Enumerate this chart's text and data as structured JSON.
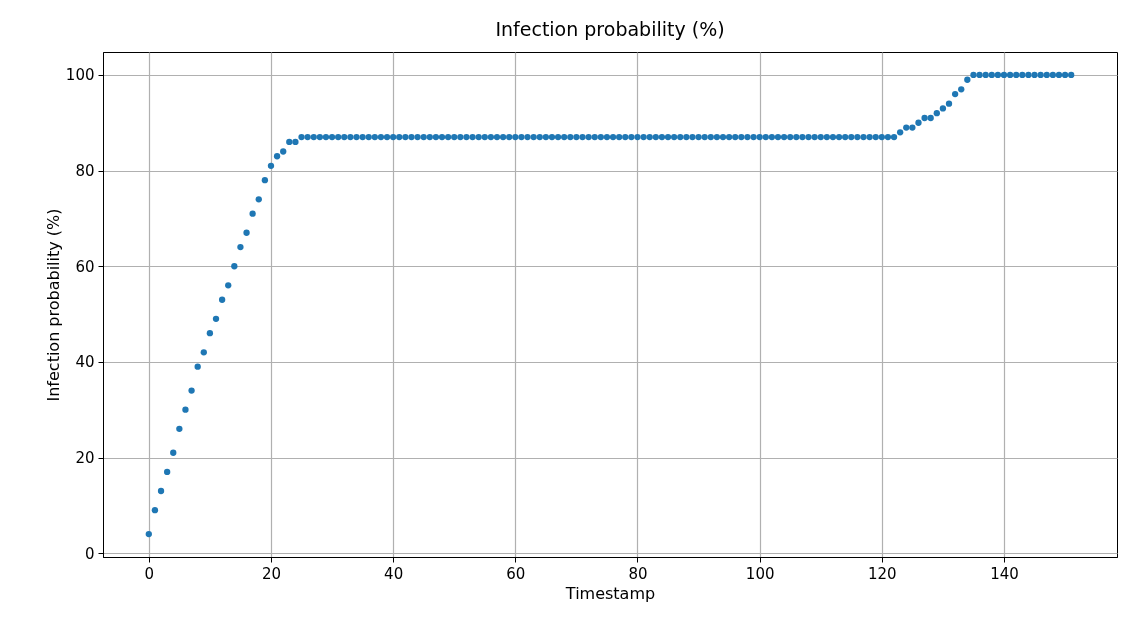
{
  "chart_data": {
    "type": "scatter",
    "title": "Infection probability (%)",
    "xlabel": "Timestamp",
    "ylabel": "Infection probability (%)",
    "x": [
      0,
      1,
      2,
      3,
      4,
      5,
      6,
      7,
      8,
      9,
      10,
      11,
      12,
      13,
      14,
      15,
      16,
      17,
      18,
      19,
      20,
      21,
      22,
      23,
      24,
      25,
      26,
      27,
      28,
      29,
      30,
      31,
      32,
      33,
      34,
      35,
      36,
      37,
      38,
      39,
      40,
      41,
      42,
      43,
      44,
      45,
      46,
      47,
      48,
      49,
      50,
      51,
      52,
      53,
      54,
      55,
      56,
      57,
      58,
      59,
      60,
      61,
      62,
      63,
      64,
      65,
      66,
      67,
      68,
      69,
      70,
      71,
      72,
      73,
      74,
      75,
      76,
      77,
      78,
      79,
      80,
      81,
      82,
      83,
      84,
      85,
      86,
      87,
      88,
      89,
      90,
      91,
      92,
      93,
      94,
      95,
      96,
      97,
      98,
      99,
      100,
      101,
      102,
      103,
      104,
      105,
      106,
      107,
      108,
      109,
      110,
      111,
      112,
      113,
      114,
      115,
      116,
      117,
      118,
      119,
      120,
      121,
      122,
      123,
      124,
      125,
      126,
      127,
      128,
      129,
      130,
      131,
      132,
      133,
      134,
      135,
      136,
      137,
      138,
      139,
      140,
      141,
      142,
      143,
      144,
      145,
      146,
      147,
      148,
      149,
      150,
      151
    ],
    "series": [
      {
        "color": "#1f77b4",
        "values": [
          4,
          9,
          13,
          17,
          21,
          26,
          30,
          34,
          39,
          42,
          46,
          49,
          53,
          56,
          60,
          64,
          67,
          71,
          74,
          78,
          81,
          83,
          84,
          86,
          86,
          87,
          87,
          87,
          87,
          87,
          87,
          87,
          87,
          87,
          87,
          87,
          87,
          87,
          87,
          87,
          87,
          87,
          87,
          87,
          87,
          87,
          87,
          87,
          87,
          87,
          87,
          87,
          87,
          87,
          87,
          87,
          87,
          87,
          87,
          87,
          87,
          87,
          87,
          87,
          87,
          87,
          87,
          87,
          87,
          87,
          87,
          87,
          87,
          87,
          87,
          87,
          87,
          87,
          87,
          87,
          87,
          87,
          87,
          87,
          87,
          87,
          87,
          87,
          87,
          87,
          87,
          87,
          87,
          87,
          87,
          87,
          87,
          87,
          87,
          87,
          87,
          87,
          87,
          87,
          87,
          87,
          87,
          87,
          87,
          87,
          87,
          87,
          87,
          87,
          87,
          87,
          87,
          87,
          87,
          87,
          87,
          87,
          87,
          88,
          89,
          89,
          90,
          91,
          91,
          92,
          93,
          94,
          96,
          97,
          99,
          100,
          100,
          100,
          100,
          100,
          100,
          100,
          100,
          100,
          100,
          100,
          100,
          100,
          100,
          100,
          100,
          100
        ]
      }
    ],
    "xlim": [
      -7.5,
      158.5
    ],
    "ylim": [
      -0.8,
      104.8
    ],
    "xticks": [
      0,
      20,
      40,
      60,
      80,
      100,
      120,
      140
    ],
    "yticks": [
      0,
      20,
      40,
      60,
      80,
      100
    ],
    "grid": true,
    "marker": "circle"
  }
}
